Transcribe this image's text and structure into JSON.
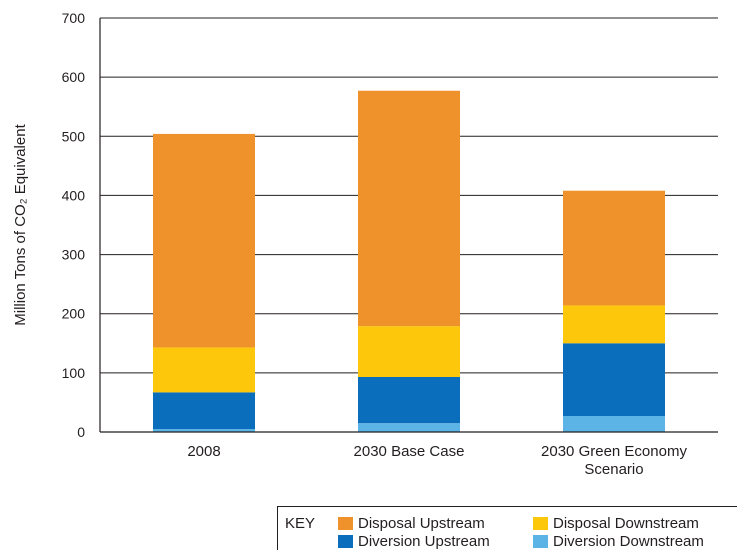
{
  "chart_data": {
    "type": "bar",
    "stacked": true,
    "ylabel": "Million Tons of CO₂ Equivalent",
    "ylim": [
      0,
      700
    ],
    "yticks": [
      0,
      100,
      200,
      300,
      400,
      500,
      600,
      700
    ],
    "categories": [
      "2008",
      "2030 Base Case",
      "2030 Green Economy Scenario"
    ],
    "series": [
      {
        "name": "Diversion Downstream",
        "color": "#5bb4e5",
        "values": [
          5,
          15,
          27
        ]
      },
      {
        "name": "Diversion Upstream",
        "color": "#0a6ebd",
        "values": [
          62,
          78,
          123
        ]
      },
      {
        "name": "Disposal Downstream",
        "color": "#fdc70c",
        "values": [
          76,
          86,
          64
        ]
      },
      {
        "name": "Disposal Upstream",
        "color": "#f0922b",
        "values": [
          361,
          398,
          194
        ]
      }
    ],
    "legend_title": "KEY",
    "legend_placement": "bottom-right",
    "grid": true
  }
}
